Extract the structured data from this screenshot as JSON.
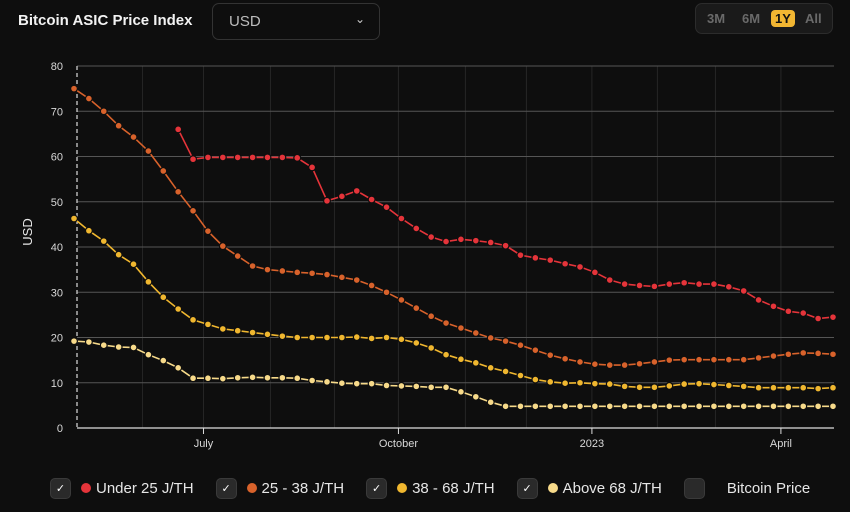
{
  "header": {
    "title": "Bitcoin ASIC Price Index",
    "currency": "USD",
    "ranges": [
      "3M",
      "6M",
      "1Y",
      "All"
    ],
    "active_range": "1Y"
  },
  "chart_data": {
    "type": "line",
    "title": "Bitcoin ASIC Price Index",
    "xlabel": "",
    "ylabel": "USD",
    "ylim": [
      0,
      80
    ],
    "yticks": [
      0,
      10,
      20,
      30,
      40,
      50,
      60,
      70,
      80
    ],
    "x_unit": "week index",
    "xlim": [
      0,
      51
    ],
    "xticks": [
      {
        "label": "July",
        "at": 8.7
      },
      {
        "label": "October",
        "at": 21.8
      },
      {
        "label": "2023",
        "at": 34.8
      },
      {
        "label": "April",
        "at": 47.5
      }
    ],
    "month_gridlines": [
      4.6,
      8.7,
      13.2,
      17.5,
      21.8,
      26.3,
      30.4,
      34.8,
      39.2,
      43.1,
      47.5
    ],
    "grid": true,
    "legend": "bottom",
    "series": [
      {
        "name": "Under 25 J/TH",
        "color": "#e5343a",
        "checked": true,
        "values": [
          null,
          null,
          null,
          null,
          null,
          null,
          null,
          66,
          59.4,
          59.8,
          59.8,
          59.8,
          59.8,
          59.8,
          59.8,
          59.7,
          57.6,
          50.2,
          51.2,
          52.4,
          50.5,
          48.8,
          46.3,
          44.1,
          42.2,
          41.2,
          41.7,
          41.4,
          41,
          40.3,
          38.2,
          37.6,
          37.1,
          36.3,
          35.6,
          34.4,
          32.7,
          31.8,
          31.5,
          31.3,
          31.8,
          32.1,
          31.8,
          31.8,
          31.2,
          30.3,
          28.3,
          26.9,
          25.8,
          25.4,
          24.2,
          24.5
        ]
      },
      {
        "name": "25 - 38 J/TH",
        "color": "#d8622b",
        "checked": true,
        "values": [
          75,
          72.8,
          70,
          66.8,
          64.3,
          61.2,
          56.8,
          52.2,
          48,
          43.5,
          40.2,
          38,
          35.8,
          35,
          34.7,
          34.4,
          34.2,
          33.9,
          33.3,
          32.7,
          31.5,
          30,
          28.3,
          26.5,
          24.7,
          23.2,
          22.1,
          21,
          19.9,
          19.2,
          18.3,
          17.2,
          16.1,
          15.3,
          14.6,
          14.1,
          13.9,
          13.9,
          14.2,
          14.6,
          15,
          15.1,
          15.1,
          15.1,
          15.1,
          15.1,
          15.5,
          15.9,
          16.3,
          16.6,
          16.5,
          16.3
        ]
      },
      {
        "name": "38 - 68 J/TH",
        "color": "#f0b72f",
        "checked": true,
        "values": [
          46.3,
          43.6,
          41.3,
          38.3,
          36.2,
          32.3,
          28.9,
          26.3,
          23.9,
          22.9,
          21.9,
          21.5,
          21.1,
          20.7,
          20.3,
          20,
          20,
          20,
          20,
          20.1,
          19.8,
          20,
          19.6,
          18.8,
          17.7,
          16.2,
          15.2,
          14.4,
          13.3,
          12.5,
          11.6,
          10.7,
          10.2,
          9.9,
          10,
          9.8,
          9.7,
          9.2,
          9,
          9,
          9.3,
          9.7,
          9.8,
          9.6,
          9.4,
          9.2,
          8.9,
          8.9,
          8.9,
          8.9,
          8.7,
          8.9
        ]
      },
      {
        "name": "Above 68 J/TH",
        "color": "#f7da8a",
        "checked": true,
        "values": [
          19.2,
          19,
          18.3,
          17.9,
          17.8,
          16.2,
          14.9,
          13.3,
          11,
          11,
          10.9,
          11.1,
          11.2,
          11.1,
          11.1,
          11,
          10.5,
          10.2,
          9.9,
          9.8,
          9.8,
          9.4,
          9.3,
          9.2,
          9,
          9,
          8,
          6.9,
          5.7,
          4.8,
          4.8,
          4.8,
          4.8,
          4.8,
          4.8,
          4.8,
          4.8,
          4.8,
          4.8,
          4.8,
          4.8,
          4.8,
          4.8,
          4.8,
          4.8,
          4.8,
          4.8,
          4.8,
          4.8,
          4.8,
          4.8,
          4.8
        ]
      },
      {
        "name": "Bitcoin Price",
        "color": "#2a2a2a",
        "checked": false,
        "values": []
      }
    ]
  }
}
